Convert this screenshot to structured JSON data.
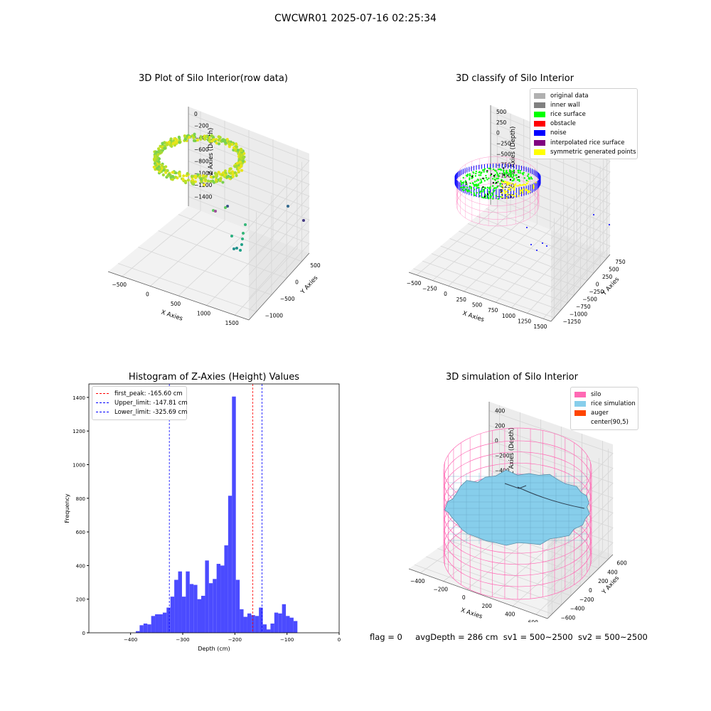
{
  "suptitle": "CWCWR01 2025-07-16 02:25:34",
  "footer": {
    "flag": "flag = 0",
    "avg_depth": "avgDepth = 286 cm",
    "sv1": "sv1 = 500~2500",
    "sv2": "sv2 = 500~2500"
  },
  "colors": {
    "hist_bar": "#4b4bff",
    "silo_mesh": "#ff69b4",
    "rice": "#87ceeb",
    "auger": "#ff4500",
    "rice_surface": "#00ff00",
    "noise": "#0000ff",
    "obstacle": "#ff0000",
    "interpolated": "#800080",
    "symmetric": "#ffff00",
    "original": "#b0b0b0",
    "inner_wall": "#808080",
    "first_peak_line": "#ff0000",
    "limit_line": "#0000ff"
  },
  "chart_data": [
    {
      "type": "scatter",
      "title": "3D Plot of Silo Interior(row data)",
      "xlabel": "X Axies",
      "ylabel": "Y Axies",
      "zlabel": "Z Axies (Depth)",
      "x_ticks": [
        "−500",
        "0",
        "500",
        "1000",
        "1500"
      ],
      "y_ticks": [
        "−1000",
        "−500",
        "0",
        "500"
      ],
      "z_ticks": [
        "0",
        "−200",
        "−400",
        "−600",
        "−800",
        "−1000",
        "−1200",
        "−1400"
      ]
    },
    {
      "type": "scatter",
      "title": "3D classify of Silo Interior",
      "xlabel": "X Axies",
      "ylabel": "Y Axies",
      "zlabel": "Z Axies (Depth)",
      "x_ticks": [
        "−500",
        "−250",
        "0",
        "250",
        "500",
        "750",
        "1000",
        "1250",
        "1500"
      ],
      "y_ticks": [
        "−1250",
        "−1000",
        "−750",
        "−500",
        "−250",
        "0",
        "250",
        "500",
        "750"
      ],
      "z_ticks": [
        "500",
        "250",
        "0",
        "−250",
        "−500",
        "−750",
        "−1000",
        "−1250",
        "−1500"
      ],
      "legend": [
        {
          "label": "original data",
          "color": "#b0b0b0"
        },
        {
          "label": "inner wall",
          "color": "#808080"
        },
        {
          "label": "rice surface",
          "color": "#00ff00"
        },
        {
          "label": "obstacle",
          "color": "#ff0000"
        },
        {
          "label": "noise",
          "color": "#0000ff"
        },
        {
          "label": "interpolated rice surface",
          "color": "#800080"
        },
        {
          "label": "symmetric generated points",
          "color": "#ffff00"
        }
      ],
      "legend_placement": "top-right"
    },
    {
      "type": "bar",
      "title": "Histogram of Z-Axies (Height) Values",
      "xlabel": "Depth (cm)",
      "ylabel": "Frequency",
      "xlim": [
        -480,
        0
      ],
      "ylim": [
        0,
        1480
      ],
      "x_ticks": [
        -400,
        -300,
        -200,
        -100,
        0
      ],
      "y_ticks": [
        0,
        200,
        400,
        600,
        800,
        1000,
        1200,
        1400
      ],
      "bin_start": -390,
      "bin_width": 7.38,
      "values": [
        10,
        45,
        55,
        50,
        100,
        110,
        110,
        120,
        150,
        215,
        315,
        365,
        215,
        365,
        290,
        285,
        200,
        220,
        430,
        295,
        320,
        410,
        400,
        520,
        815,
        1405,
        315,
        140,
        95,
        115,
        105,
        100,
        150,
        50,
        20,
        55,
        120,
        115,
        170,
        100,
        90,
        70
      ],
      "vlines": [
        {
          "label": "first_peak: -165.60 cm",
          "x": -165.6,
          "color": "#ff0000"
        },
        {
          "label": "Upper_limit: -147.81 cm",
          "x": -147.81,
          "color": "#0000ff"
        },
        {
          "label": "Lower_limit: -325.69 cm",
          "x": -325.69,
          "color": "#0000ff"
        }
      ],
      "legend_placement": "top-left"
    },
    {
      "type": "area",
      "title": "3D simulation of Silo Interior",
      "xlabel": "X Axies",
      "ylabel": "Y Axies",
      "zlabel": "Z Axies (Depth)",
      "x_ticks": [
        "−400",
        "−200",
        "0",
        "200",
        "400",
        "600"
      ],
      "y_ticks": [
        "−600",
        "−400",
        "−200",
        "0",
        "200",
        "400",
        "600"
      ],
      "z_ticks": [
        "400",
        "200",
        "0",
        "−200",
        "−400",
        "−600",
        "−800"
      ],
      "legend": [
        {
          "label": "silo",
          "color": "#ff69b4"
        },
        {
          "label": "rice simulation",
          "color": "#87ceeb"
        },
        {
          "label": "auger",
          "color": "#ff4500"
        },
        {
          "label": "center(90,5)",
          "color": ""
        }
      ],
      "legend_placement": "top-right"
    }
  ]
}
